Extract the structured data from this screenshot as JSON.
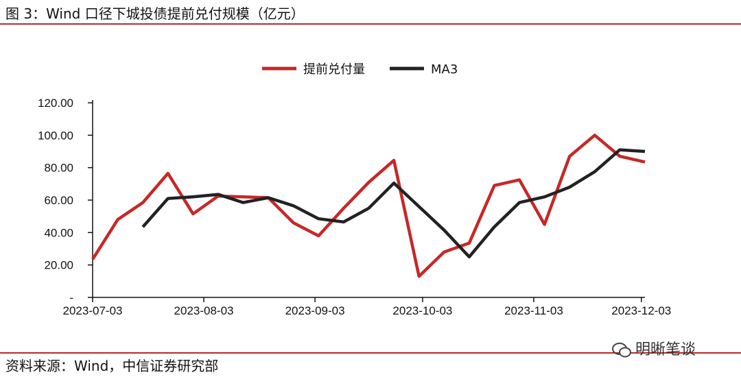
{
  "header": {
    "title": "图 3：Wind 口径下城投债提前兑付规模（亿元）"
  },
  "footer": {
    "source": "资料来源：Wind，中信证券研究部",
    "watermark": "明晰笔谈"
  },
  "colors": {
    "series1": "#c62828",
    "series2": "#222222",
    "rule": "#b52a2a",
    "axis": "#111111"
  },
  "chart_data": {
    "type": "line",
    "x": [
      "2023-07-03",
      "2023-07-10",
      "2023-07-17",
      "2023-07-24",
      "2023-07-31",
      "2023-08-07",
      "2023-08-14",
      "2023-08-21",
      "2023-08-28",
      "2023-09-04",
      "2023-09-11",
      "2023-09-18",
      "2023-09-25",
      "2023-10-02",
      "2023-10-09",
      "2023-10-16",
      "2023-10-23",
      "2023-10-30",
      "2023-11-06",
      "2023-11-13",
      "2023-11-20",
      "2023-11-27",
      "2023-12-04"
    ],
    "x_tick_labels": [
      "2023-07-03",
      "2023-08-03",
      "2023-09-03",
      "2023-10-03",
      "2023-11-03",
      "2023-12-03"
    ],
    "y_tick_labels": [
      "-",
      "20.00",
      "40.00",
      "60.00",
      "80.00",
      "100.00",
      "120.00"
    ],
    "ylim": [
      0,
      120
    ],
    "legend_position": "top-center",
    "series": [
      {
        "name": "提前兑付量",
        "color": "#c62828",
        "values": [
          23.5,
          48.0,
          58.5,
          76.5,
          51.5,
          62.5,
          62.0,
          61.5,
          46.0,
          38.0,
          55.0,
          71.0,
          84.5,
          13.0,
          28.0,
          33.5,
          69.0,
          72.5,
          45.0,
          87.0,
          100.0,
          87.0,
          83.5
        ]
      },
      {
        "name": "MA3",
        "color": "#222222",
        "values": [
          null,
          null,
          43.5,
          61.0,
          62.0,
          63.5,
          58.5,
          61.5,
          56.5,
          48.5,
          46.5,
          55.0,
          70.5,
          56.0,
          41.5,
          25.0,
          43.5,
          58.5,
          62.0,
          68.0,
          77.5,
          91.0,
          90.0
        ]
      }
    ]
  }
}
